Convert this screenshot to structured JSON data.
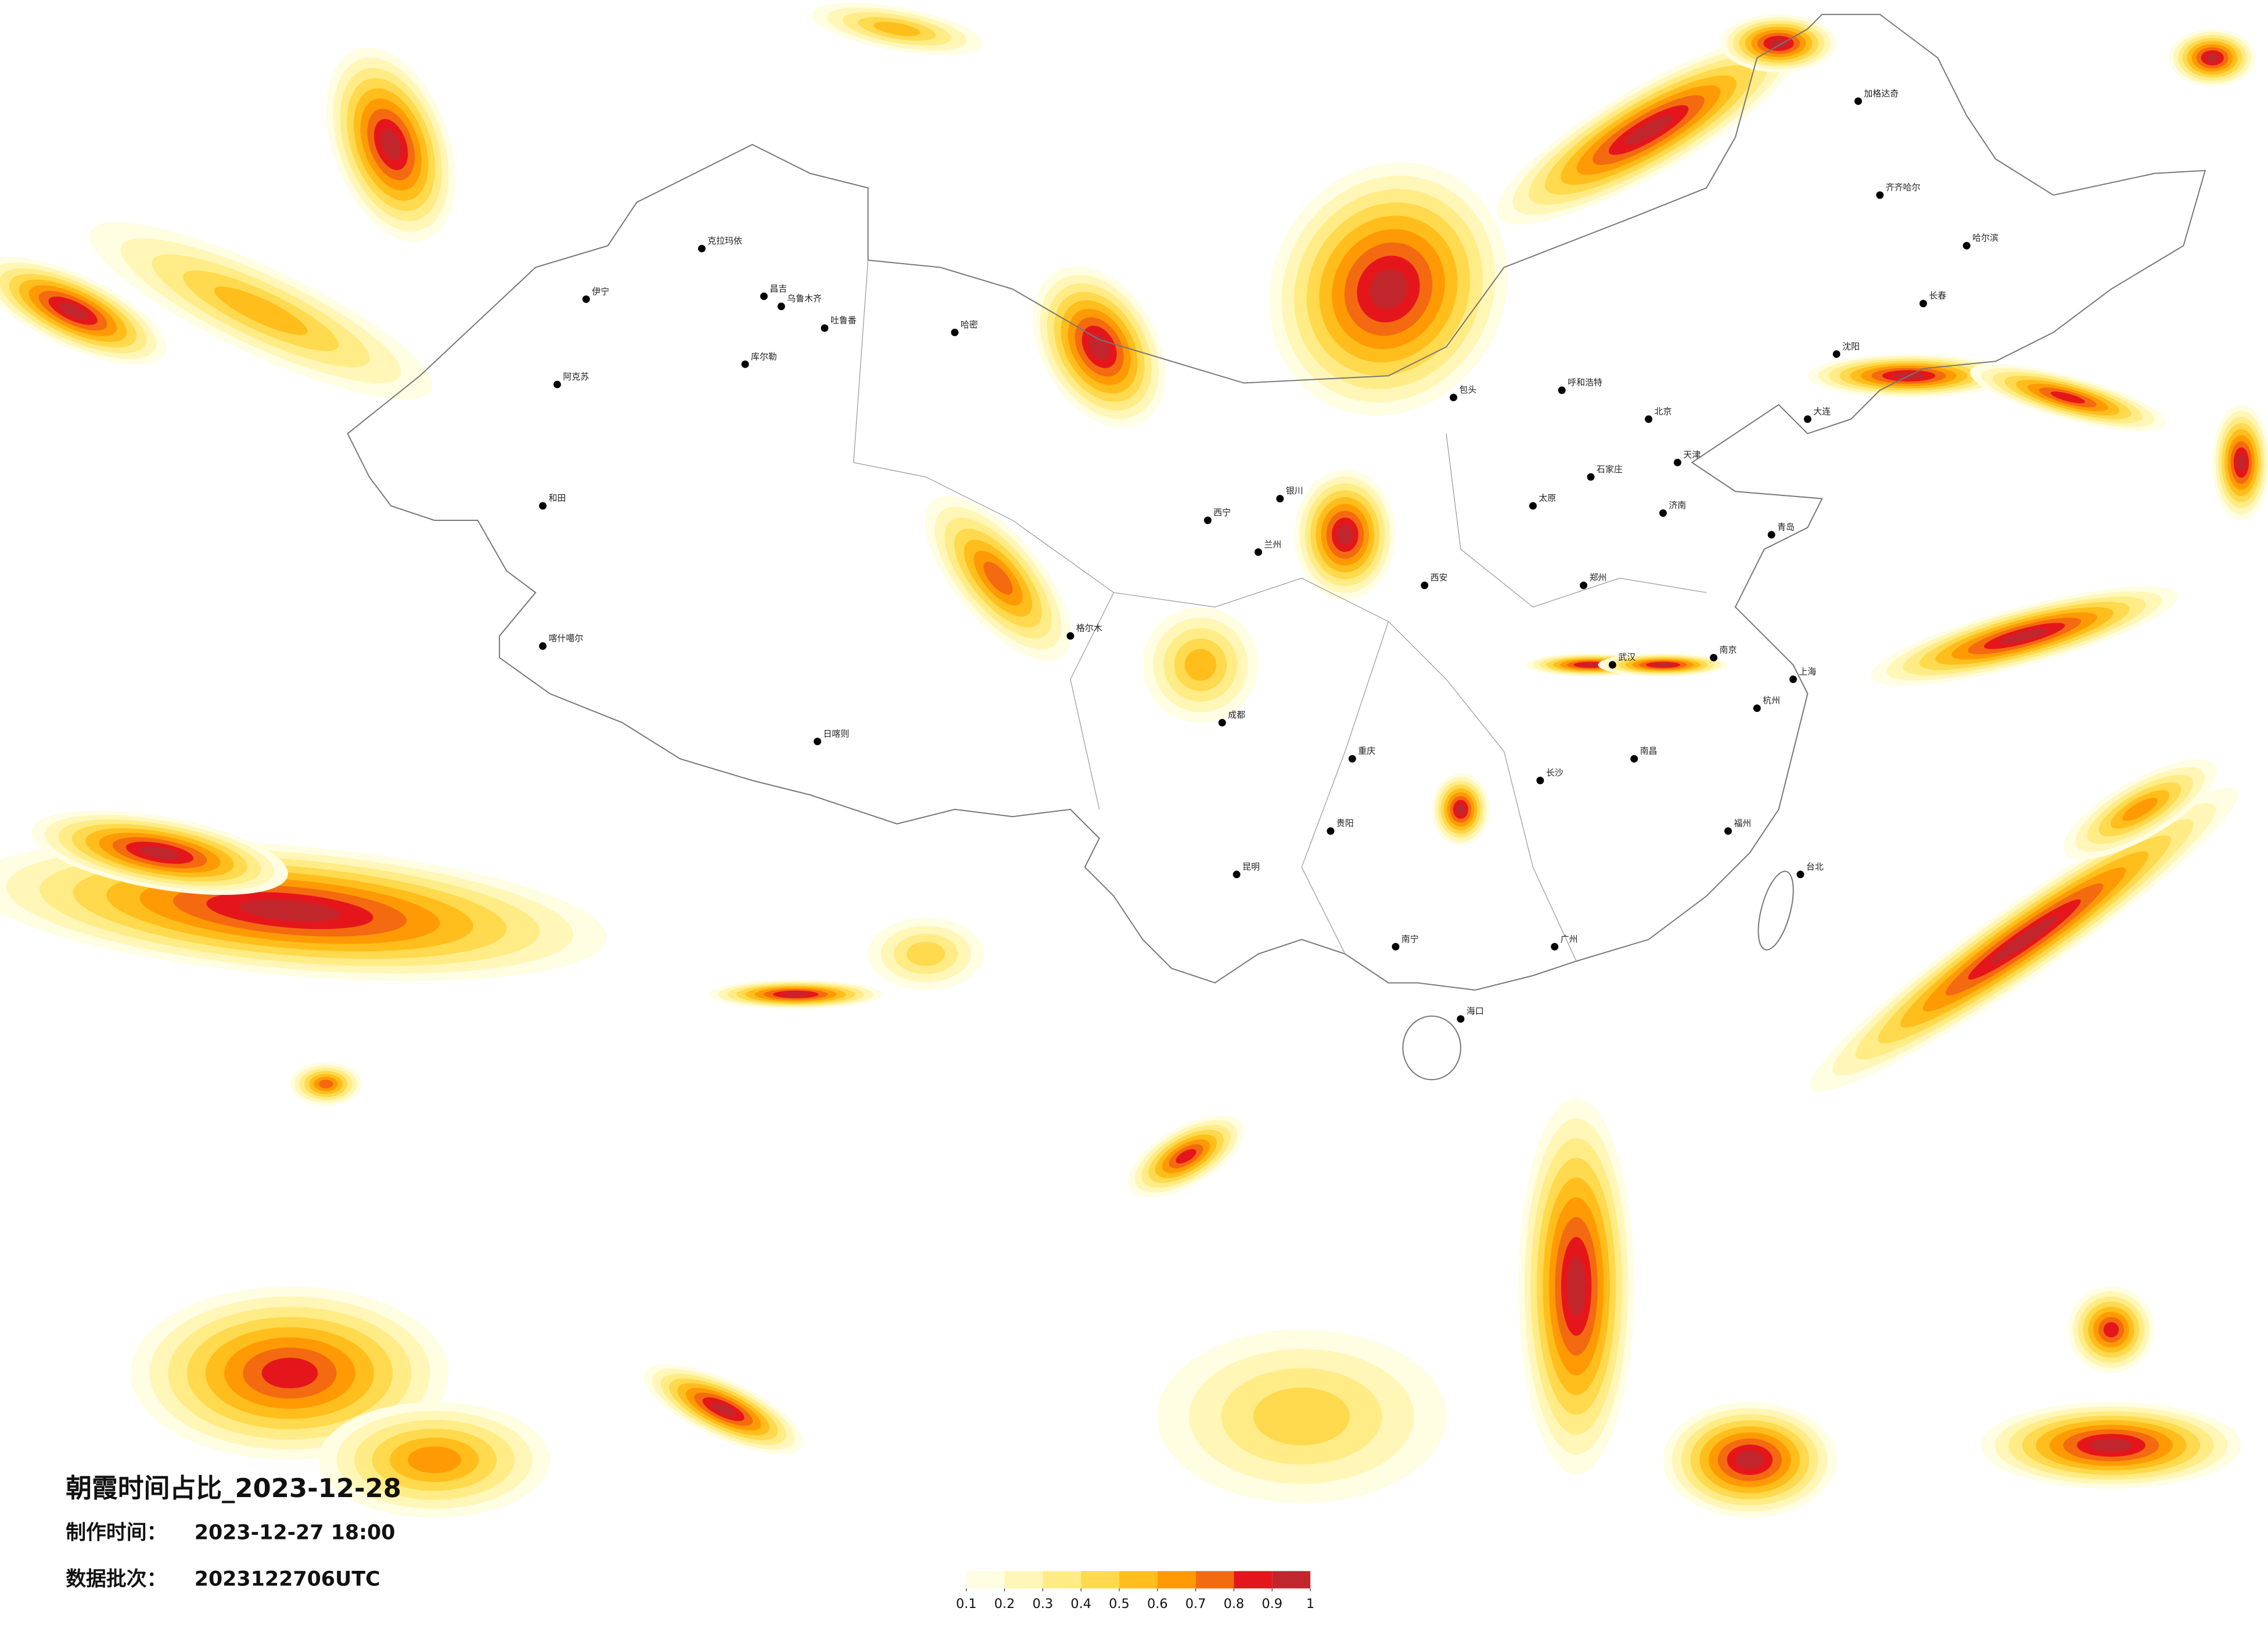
{
  "header": {
    "title": "朝霞时间占比_2023-12-28",
    "made_label": "制作时间：",
    "made_time": "2023-12-27 18:00",
    "batch_label": "数据批次：",
    "batch": "2023122706UTC"
  },
  "colorbar": {
    "ticks": [
      0.1,
      0.2,
      0.3,
      0.4,
      0.5,
      0.6,
      0.7,
      0.8,
      0.9,
      1
    ],
    "colors": [
      "#fffde2",
      "#fff6b8",
      "#ffec86",
      "#ffd94e",
      "#ffbe1c",
      "#ff9a05",
      "#f46a10",
      "#e5161b",
      "#c1262c"
    ]
  },
  "map": {
    "cities": [
      "克拉玛依",
      "伊宁",
      "昌吉",
      "乌鲁木齐",
      "吐鲁番",
      "哈密",
      "库尔勒",
      "阿克苏",
      "和田",
      "喀什噶尔",
      "日喀则",
      "格尔木",
      "西宁",
      "兰州",
      "银川",
      "呼和浩特",
      "包头",
      "北京",
      "天津",
      "石家庄",
      "太原",
      "济南",
      "青岛",
      "郑州",
      "西安",
      "成都",
      "重庆",
      "武汉",
      "南京",
      "上海",
      "杭州",
      "长沙",
      "南昌",
      "福州",
      "贵阳",
      "昆明",
      "南宁",
      "广州",
      "海口",
      "台北",
      "沈阳",
      "长春",
      "哈尔滨",
      "大连",
      "齐齐哈尔",
      "加格达奇"
    ]
  }
}
